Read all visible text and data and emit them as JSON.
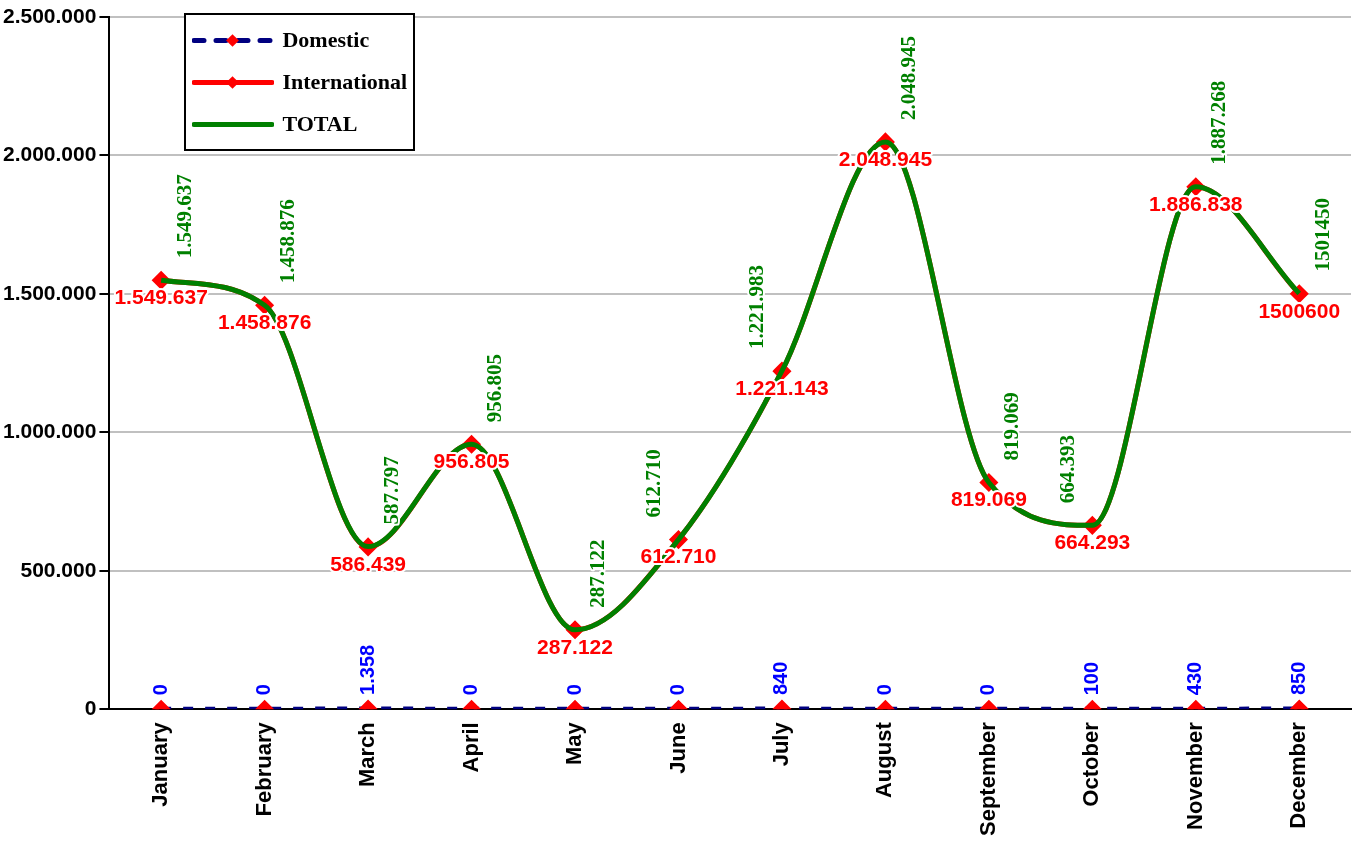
{
  "chart_data": {
    "type": "line",
    "categories": [
      "January",
      "February",
      "March",
      "April",
      "May",
      "June",
      "July",
      "August",
      "September",
      "October",
      "November",
      "December"
    ],
    "series": [
      {
        "name": "International",
        "color": "#ff0000",
        "marker": "diamond",
        "line_style": "solid",
        "values": [
          1549637,
          1458876,
          586439,
          956805,
          287122,
          612710,
          1221143,
          2048945,
          819069,
          664293,
          1886838,
          1500600
        ],
        "value_labels": [
          "1.549.637",
          "1.458.876",
          "586.439",
          "956.805",
          "287.122",
          "612.710",
          "1.221.143",
          "2.048.945",
          "819.069",
          "664.293",
          "1.886.838",
          "1500600"
        ]
      },
      {
        "name": "TOTAL",
        "color": "#008000",
        "marker": "none",
        "line_style": "solid",
        "values": [
          1549637,
          1458876,
          587797,
          956805,
          287122,
          612710,
          1221983,
          2048945,
          819069,
          664393,
          1887268,
          1501450
        ],
        "value_labels": [
          "1.549.637",
          "1.458.876",
          "587.797",
          "956.805",
          "287.122",
          "612.710",
          "1.221.983",
          "2.048.945",
          "819.069",
          "664.393",
          "1.887.268",
          "1501450"
        ]
      },
      {
        "name": "Domestic",
        "color": "#000080",
        "marker": "diamond",
        "line_style": "dashed",
        "values": [
          0,
          0,
          1358,
          0,
          0,
          0,
          840,
          0,
          0,
          100,
          430,
          850
        ],
        "value_labels": [
          "0",
          "0",
          "1.358",
          "0",
          "0",
          "0",
          "840",
          "0",
          "0",
          "100",
          "430",
          "850"
        ]
      }
    ],
    "ylim": [
      0,
      2500000
    ],
    "yticks": [
      {
        "value": 0,
        "label": "0"
      },
      {
        "value": 500000,
        "label": "500.000"
      },
      {
        "value": 1000000,
        "label": "1.000.000"
      },
      {
        "value": 1500000,
        "label": "1.500.000"
      },
      {
        "value": 2000000,
        "label": "2.000.000"
      },
      {
        "value": 2500000,
        "label": "2.500.000"
      }
    ],
    "grid": "y",
    "legend": "top left"
  }
}
